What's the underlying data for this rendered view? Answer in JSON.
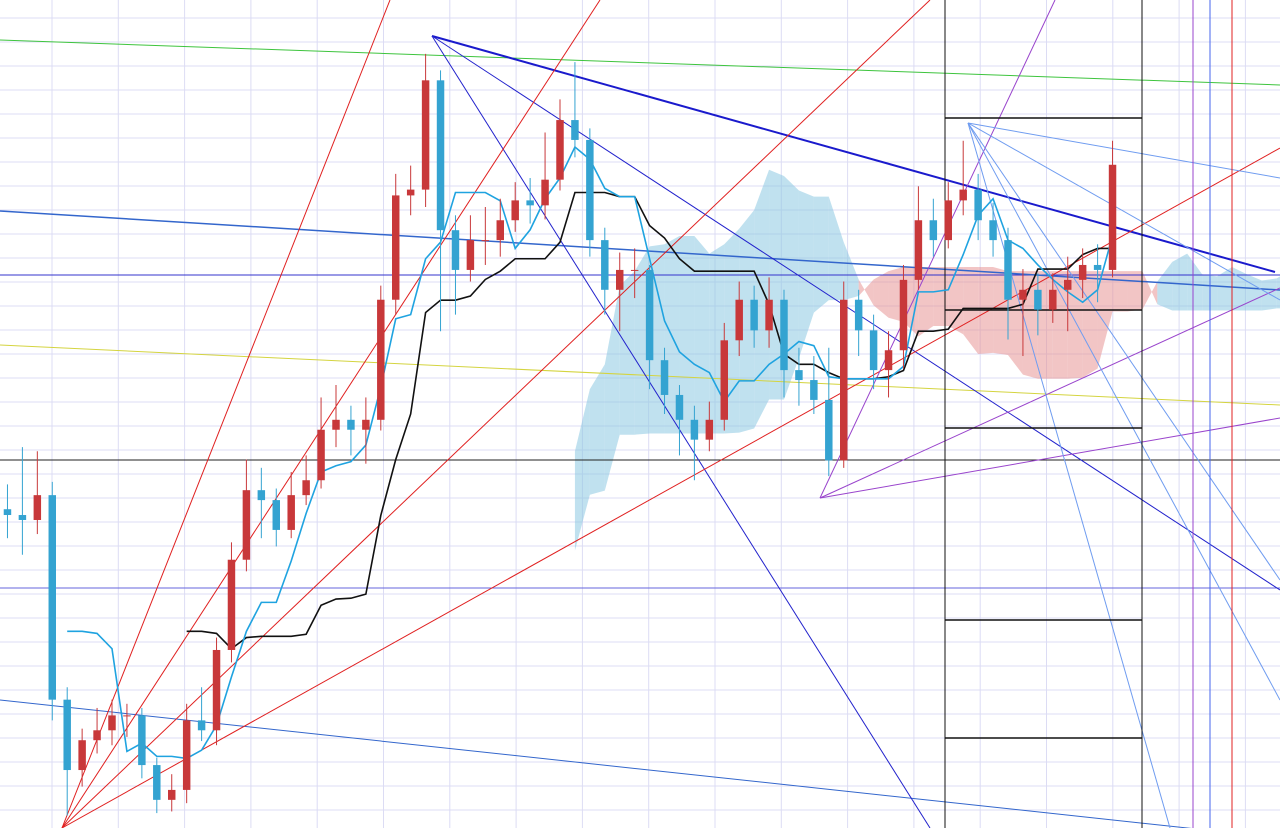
{
  "chart_data": {
    "type": "candlestick",
    "ylim": [
      0,
      100
    ],
    "grid": true,
    "up_color": "#c8383a",
    "down_color": "#34a3d1",
    "open": [
      38.5,
      37.8,
      37.2,
      40.2,
      15.5,
      7.0,
      10.6,
      11.8,
      13.6,
      13.6,
      7.6,
      3.4,
      4.6,
      13.0,
      11.8,
      21.5,
      32.4,
      40.8,
      39.6,
      36.0,
      40.2,
      42.0,
      48.1,
      49.3,
      48.1,
      49.3,
      63.8,
      76.4,
      77.1,
      90.3,
      72.2,
      67.4,
      71.0,
      71.0,
      73.4,
      75.8,
      75.2,
      78.3,
      85.5,
      83.1,
      71.0,
      65.0,
      67.4,
      67.4,
      56.5,
      52.3,
      49.3,
      46.9,
      49.3,
      58.9,
      63.8,
      60.1,
      63.8,
      55.3,
      54.1,
      51.7,
      44.4,
      63.8,
      60.1,
      55.3,
      57.7,
      66.2,
      73.4,
      71.0,
      75.8,
      77.1,
      73.4,
      71.0,
      63.8,
      65.0,
      62.6,
      65.0,
      66.2,
      68.0,
      67.4
    ],
    "high": [
      41.5,
      46.0,
      45.5,
      41.8,
      17.0,
      12.0,
      14.5,
      15.5,
      15.0,
      14.5,
      8.5,
      6.5,
      15.0,
      17.0,
      23.0,
      34.5,
      44.5,
      43.5,
      41.0,
      43.0,
      45.0,
      52.0,
      53.5,
      51.0,
      52.0,
      65.5,
      79.0,
      80.0,
      93.5,
      91.5,
      74.0,
      74.0,
      75.0,
      76.0,
      78.0,
      78.5,
      84.0,
      88.0,
      92.5,
      84.5,
      72.5,
      69.5,
      70.0,
      68.0,
      58.0,
      53.5,
      51.0,
      51.5,
      61.0,
      66.0,
      65.5,
      66.5,
      65.0,
      58.0,
      57.0,
      58.0,
      66.0,
      65.0,
      62.0,
      60.0,
      68.0,
      77.5,
      76.0,
      78.0,
      83.0,
      79.0,
      75.5,
      72.5,
      67.5,
      67.0,
      67.0,
      69.0,
      70.0,
      70.5,
      83.0
    ],
    "low": [
      35.0,
      33.0,
      35.5,
      13.0,
      1.5,
      5.0,
      9.0,
      10.0,
      11.0,
      6.0,
      1.8,
      2.0,
      3.0,
      10.5,
      10.0,
      20.0,
      31.0,
      35.0,
      34.0,
      35.0,
      39.0,
      41.0,
      46.0,
      45.0,
      44.0,
      48.0,
      62.0,
      74.0,
      75.0,
      60.0,
      62.0,
      66.0,
      68.0,
      69.0,
      72.0,
      73.0,
      73.5,
      77.0,
      81.0,
      69.0,
      62.0,
      60.0,
      64.0,
      53.0,
      50.0,
      45.0,
      42.0,
      45.5,
      48.0,
      57.0,
      58.0,
      58.0,
      52.0,
      51.0,
      50.0,
      42.5,
      43.5,
      57.0,
      53.0,
      52.0,
      55.5,
      65.0,
      69.0,
      70.0,
      74.0,
      71.0,
      69.0,
      59.0,
      57.0,
      59.5,
      61.0,
      60.0,
      64.0,
      63.5,
      66.5
    ],
    "close": [
      37.8,
      37.2,
      40.2,
      15.5,
      7.0,
      10.6,
      11.8,
      13.6,
      13.6,
      7.6,
      3.4,
      4.6,
      13.0,
      11.8,
      21.5,
      32.4,
      40.8,
      39.6,
      36.0,
      40.2,
      42.0,
      48.1,
      49.3,
      48.1,
      49.3,
      63.8,
      76.4,
      77.1,
      90.3,
      72.2,
      67.4,
      71.0,
      71.0,
      73.4,
      75.8,
      75.2,
      78.3,
      85.5,
      83.1,
      71.0,
      65.0,
      67.4,
      67.4,
      56.5,
      52.3,
      49.3,
      46.9,
      49.3,
      58.9,
      63.8,
      60.1,
      63.8,
      55.3,
      54.1,
      51.7,
      44.4,
      63.8,
      60.1,
      55.3,
      57.7,
      66.2,
      73.4,
      71.0,
      75.8,
      77.1,
      73.4,
      71.0,
      63.8,
      65.0,
      62.6,
      65.0,
      66.2,
      68.0,
      67.4,
      80.1
    ]
  }
}
